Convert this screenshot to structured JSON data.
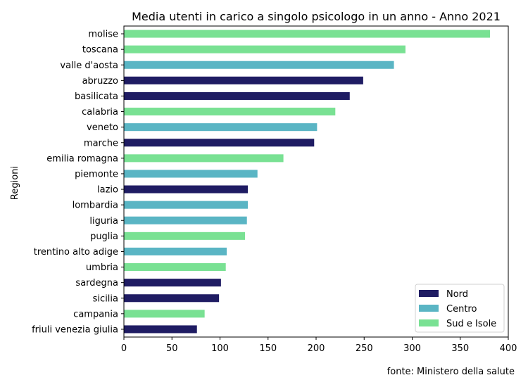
{
  "chart_data": {
    "type": "bar",
    "orientation": "horizontal",
    "title": "Media utenti in carico a singolo psicologo in un anno - Anno 2021",
    "ylabel": "Regioni",
    "xlabel": "",
    "xlim": [
      0,
      400
    ],
    "xticks": [
      "0",
      "50",
      "100",
      "150",
      "200",
      "250",
      "300",
      "350",
      "400"
    ],
    "grid": false,
    "legend_position": "bottom-right",
    "source": "fonte: Ministero della salute",
    "legend": [
      {
        "name": "Nord",
        "color": "#1f1c63"
      },
      {
        "name": "Centro",
        "color": "#5ab5c4"
      },
      {
        "name": "Sud e Isole",
        "color": "#79e193"
      }
    ],
    "bars": [
      {
        "label": "molise",
        "value": 381,
        "group": "Sud e Isole"
      },
      {
        "label": "toscana",
        "value": 293,
        "group": "Sud e Isole"
      },
      {
        "label": "valle d'aosta",
        "value": 281,
        "group": "Centro"
      },
      {
        "label": "abruzzo",
        "value": 249,
        "group": "Nord"
      },
      {
        "label": "basilicata",
        "value": 235,
        "group": "Nord"
      },
      {
        "label": "calabria",
        "value": 220,
        "group": "Sud e Isole"
      },
      {
        "label": "veneto",
        "value": 201,
        "group": "Centro"
      },
      {
        "label": "marche",
        "value": 198,
        "group": "Nord"
      },
      {
        "label": "emilia romagna",
        "value": 166,
        "group": "Sud e Isole"
      },
      {
        "label": "piemonte",
        "value": 139,
        "group": "Centro"
      },
      {
        "label": "lazio",
        "value": 129,
        "group": "Nord"
      },
      {
        "label": "lombardia",
        "value": 129,
        "group": "Centro"
      },
      {
        "label": "liguria",
        "value": 128,
        "group": "Centro"
      },
      {
        "label": "puglia",
        "value": 126,
        "group": "Sud e Isole"
      },
      {
        "label": "trentino alto adige",
        "value": 107,
        "group": "Centro"
      },
      {
        "label": "umbria",
        "value": 106,
        "group": "Sud e Isole"
      },
      {
        "label": "sardegna",
        "value": 101,
        "group": "Nord"
      },
      {
        "label": "sicilia",
        "value": 99,
        "group": "Nord"
      },
      {
        "label": "campania",
        "value": 84,
        "group": "Sud e Isole"
      },
      {
        "label": "friuli venezia giulia",
        "value": 76,
        "group": "Nord"
      }
    ]
  }
}
